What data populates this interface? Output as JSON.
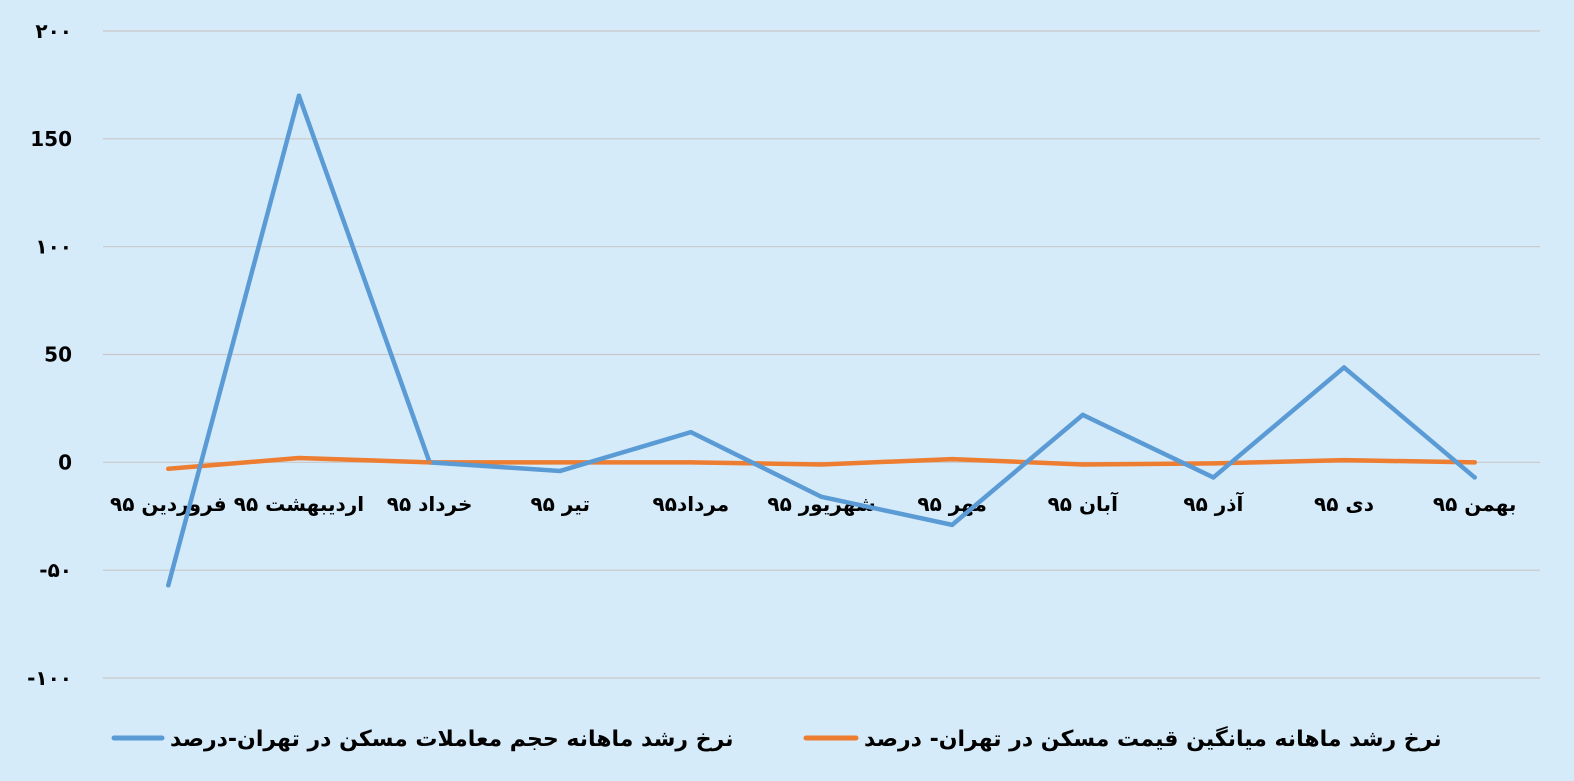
{
  "chart_data": {
    "type": "line",
    "categories": [
      "فروردین ۹۵",
      "اردیبهشت ۹۵",
      "خرداد ۹۵",
      "تیر ۹۵",
      "مرداد۹۵",
      "شهریور ۹۵",
      "مهر ۹۵",
      "آبان ۹۵",
      "آذر ۹۵",
      "دی ۹۵",
      "بهمن ۹۵"
    ],
    "series": [
      {
        "name": "نرخ رشد ماهانه حجم معاملات مسکن در تهران-درصد",
        "color": "#5b9bd5",
        "values": [
          -57,
          170,
          0,
          -4,
          14,
          -16,
          -29,
          22,
          -7,
          44,
          -7
        ]
      },
      {
        "name": "نرخ رشد ماهانه میانگین قیمت مسکن در تهران- درصد",
        "color": "#ed7d31",
        "values": [
          -3,
          2,
          0,
          0,
          0,
          -1,
          1.5,
          -1,
          -0.5,
          1,
          0
        ]
      }
    ],
    "ylim": [
      -100,
      200
    ],
    "yticks": [
      200,
      150,
      100,
      50,
      0,
      -50,
      -100
    ],
    "ytick_labels": [
      "۲۰۰",
      "150",
      "۱۰۰",
      "50",
      "0",
      "-۵۰",
      "-۱۰۰"
    ],
    "grid": true,
    "legend_position": "bottom",
    "title": "",
    "xlabel": "",
    "ylabel": ""
  }
}
